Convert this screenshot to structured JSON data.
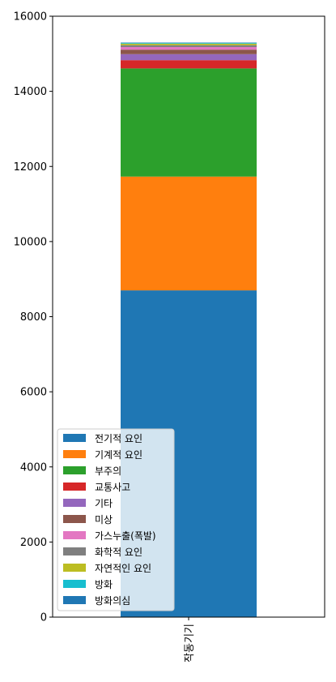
{
  "chart_data": {
    "type": "bar",
    "stacked": true,
    "categories": [
      "작동기기"
    ],
    "ylim": [
      0,
      16000
    ],
    "yticks": [
      0,
      2000,
      4000,
      6000,
      8000,
      10000,
      12000,
      14000,
      16000
    ],
    "grid": false,
    "legend_position": "lower-left",
    "series": [
      {
        "name": "전기적 요인",
        "values": [
          8700
        ],
        "color": "#1f77b4"
      },
      {
        "name": "기계적 요인",
        "values": [
          3030
        ],
        "color": "#ff7f0e"
      },
      {
        "name": "부주의",
        "values": [
          2880
        ],
        "color": "#2ca02c"
      },
      {
        "name": "교통사고",
        "values": [
          220
        ],
        "color": "#d62728"
      },
      {
        "name": "기타",
        "values": [
          160
        ],
        "color": "#9467bd"
      },
      {
        "name": "미상",
        "values": [
          120
        ],
        "color": "#8c564b"
      },
      {
        "name": "가스누출(폭발)",
        "values": [
          70
        ],
        "color": "#e377c2"
      },
      {
        "name": "화학적 요인",
        "values": [
          50
        ],
        "color": "#7f7f7f"
      },
      {
        "name": "자연적인 요인",
        "values": [
          40
        ],
        "color": "#bcbd22"
      },
      {
        "name": "방화",
        "values": [
          20
        ],
        "color": "#17becf"
      },
      {
        "name": "방화의심",
        "values": [
          10
        ],
        "color": "#1f77b4"
      }
    ]
  }
}
